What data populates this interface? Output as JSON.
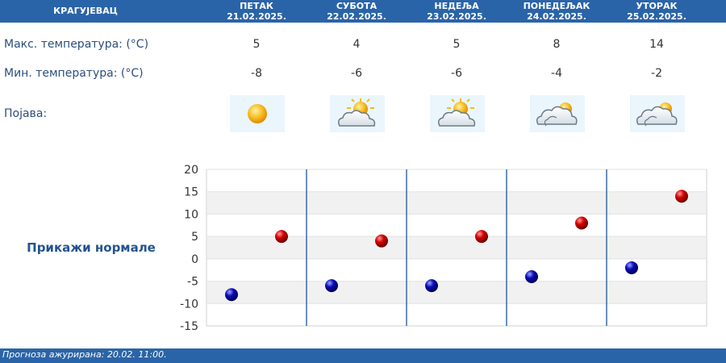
{
  "header": {
    "city": "КРАГУЈЕВАЦ",
    "days": [
      {
        "name": "ПЕТАК",
        "date": "21.02.2025."
      },
      {
        "name": "СУБОТА",
        "date": "22.02.2025."
      },
      {
        "name": "НЕДЕЉА",
        "date": "23.02.2025."
      },
      {
        "name": "ПОНЕДЕЉАК",
        "date": "24.02.2025."
      },
      {
        "name": "УТОРАК",
        "date": "25.02.2025."
      }
    ]
  },
  "rows": {
    "max_label": "Макс. температура: (°C)",
    "min_label": "Мин. температура: (°C)",
    "phenomenon_label": "Појава:"
  },
  "max_temps": [
    "5",
    "4",
    "5",
    "8",
    "14"
  ],
  "min_temps": [
    "-8",
    "-6",
    "-6",
    "-4",
    "-2"
  ],
  "icons": [
    "sun-icon",
    "sun-cloud-icon",
    "sun-cloud-icon",
    "cloud-sun-icon",
    "cloud-sun-icon"
  ],
  "show_normals_label": "Прикажи нормале",
  "footer_text": "Прогноза ажурирана:  20.02. 11:00.",
  "colors": {
    "header": "#2a64a8",
    "max_marker": "#cc0000",
    "min_marker": "#0a0aa8"
  },
  "chart_data": {
    "type": "scatter",
    "ylim": [
      -15,
      20
    ],
    "yticks": [
      20,
      15,
      10,
      5,
      0,
      -5,
      -10,
      -15
    ],
    "series": [
      {
        "values": [
          5,
          4,
          5,
          8,
          14
        ],
        "color": "#cc0000"
      },
      {
        "values": [
          -8,
          -6,
          -6,
          -4,
          -2
        ],
        "color": "#0a0aa8"
      }
    ]
  }
}
